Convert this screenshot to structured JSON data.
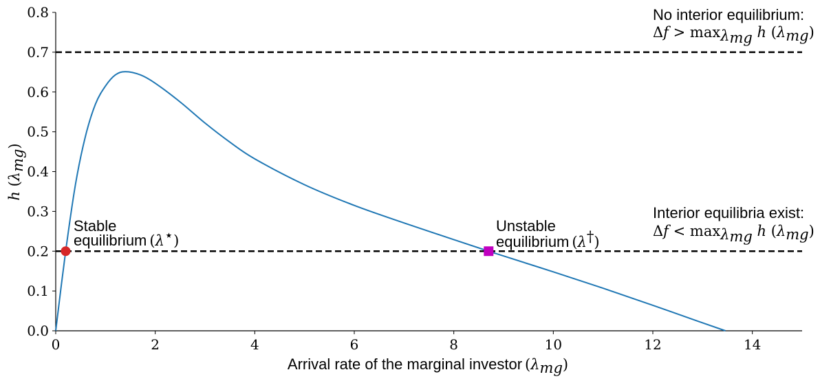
{
  "chart_data": {
    "type": "line",
    "xlabel": "Arrival rate of the marginal investor",
    "xlabel_math": "(λmg)",
    "ylabel": "h (λmg)",
    "xlim": [
      0,
      15
    ],
    "ylim": [
      0,
      0.8
    ],
    "xticks": [
      0,
      2,
      4,
      6,
      8,
      10,
      12,
      14
    ],
    "yticks": [
      0.0,
      0.1,
      0.2,
      0.3,
      0.4,
      0.5,
      0.6,
      0.7,
      0.8
    ],
    "xtick_labels": [
      "0",
      "2",
      "4",
      "6",
      "8",
      "10",
      "12",
      "14"
    ],
    "ytick_labels": [
      "0.0",
      "0.1",
      "0.2",
      "0.3",
      "0.4",
      "0.5",
      "0.6",
      "0.7",
      "0.8"
    ],
    "grid": false,
    "series": [
      {
        "color": "#1f77b4",
        "x": [
          0,
          0.2,
          0.4,
          0.6,
          0.8,
          1.0,
          1.2,
          1.4,
          1.7,
          2.0,
          2.5,
          3.0,
          3.5,
          4.0,
          5.0,
          6.0,
          7.0,
          8.0,
          8.7,
          9.0,
          10.0,
          11.0,
          12.0,
          13.0,
          13.46
        ],
        "y": [
          0,
          0.2,
          0.37,
          0.49,
          0.57,
          0.615,
          0.643,
          0.651,
          0.643,
          0.622,
          0.575,
          0.522,
          0.474,
          0.432,
          0.367,
          0.315,
          0.271,
          0.229,
          0.2,
          0.188,
          0.148,
          0.107,
          0.064,
          0.02,
          0
        ]
      }
    ],
    "hlines": [
      {
        "y": 0.7,
        "style": "dashed",
        "color": "#000000"
      },
      {
        "y": 0.2,
        "style": "dashed",
        "color": "#000000"
      }
    ],
    "points": [
      {
        "x": 0.2,
        "y": 0.2,
        "marker": "circle",
        "color": "#d62728"
      },
      {
        "x": 8.7,
        "y": 0.2,
        "marker": "square",
        "color": "#c000c0"
      }
    ],
    "annotations": {
      "stable_line1": "Stable",
      "stable_line2": "equilibrium",
      "stable_math": "(λ*)",
      "unstable_line1": "Unstable",
      "unstable_line2": "equilibrium",
      "unstable_math": "(λ†)",
      "no_interior_title": "No interior equilibrium:",
      "no_interior_formula": "Δf > maxλmg h (λmg)",
      "interior_title": "Interior equilibria exist:",
      "interior_formula": "Δf < maxλmg h (λmg)"
    }
  }
}
